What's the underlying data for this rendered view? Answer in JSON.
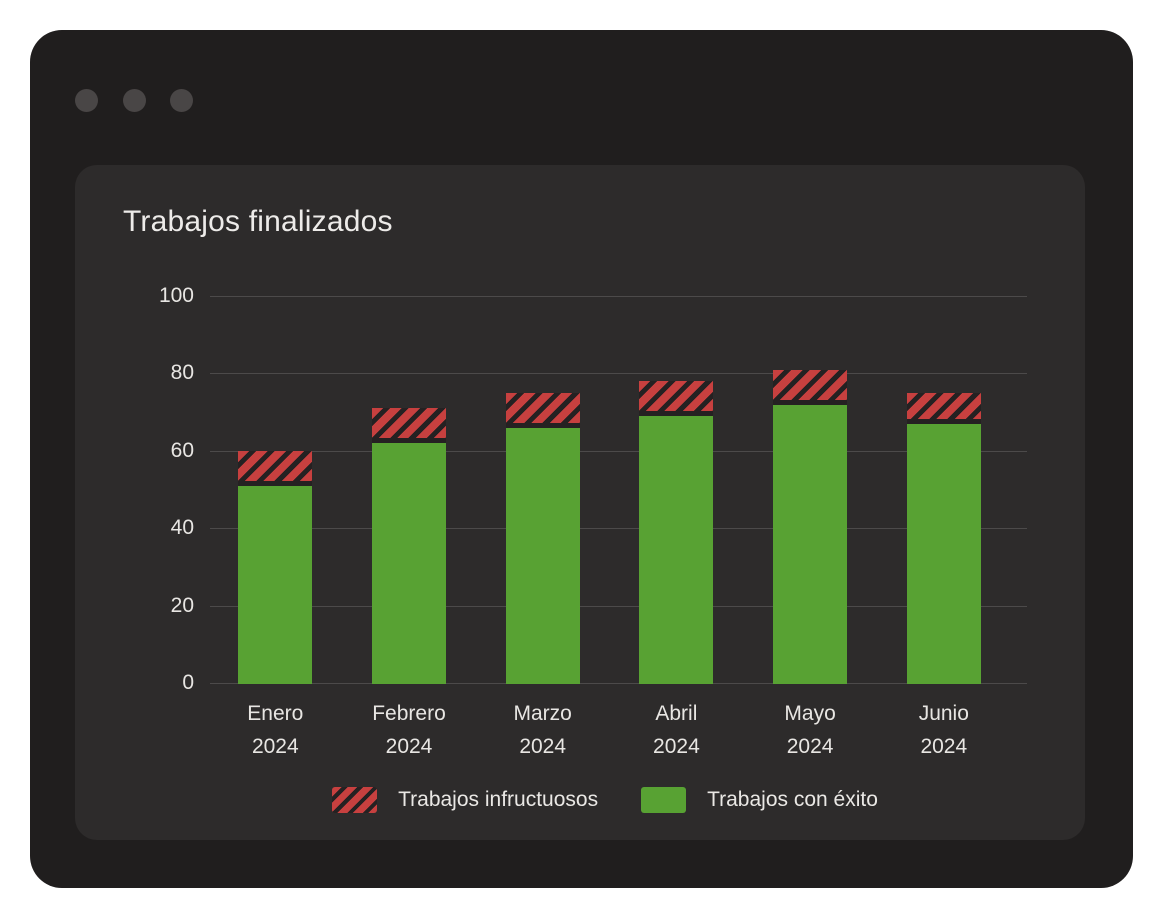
{
  "window": {
    "controls": [
      "dot",
      "dot",
      "dot"
    ]
  },
  "chart_data": {
    "type": "bar",
    "stacked": true,
    "title": "Trabajos finalizados",
    "categories": [
      {
        "month": "Enero",
        "year": "2024"
      },
      {
        "month": "Febrero",
        "year": "2024"
      },
      {
        "month": "Marzo",
        "year": "2024"
      },
      {
        "month": "Abril",
        "year": "2024"
      },
      {
        "month": "Mayo",
        "year": "2024"
      },
      {
        "month": "Junio",
        "year": "2024"
      }
    ],
    "series": [
      {
        "name": "Trabajos con éxito",
        "color": "#58a233",
        "pattern": "solid",
        "values": [
          51,
          62,
          66,
          69,
          72,
          67
        ]
      },
      {
        "name": "Trabajos infructuosos",
        "color": "#c7403f",
        "pattern": "diagonal-hatch",
        "hatch_color": "#252122",
        "values": [
          9,
          9,
          9,
          9,
          9,
          8
        ]
      }
    ],
    "totals": [
      60,
      71,
      75,
      78,
      81,
      75
    ],
    "ylim": [
      0,
      100
    ],
    "yticks": [
      0,
      20,
      40,
      60,
      80,
      100
    ],
    "grid": true,
    "legend_position": "bottom"
  },
  "legend": {
    "items": [
      {
        "label": "Trabajos infructuosos"
      },
      {
        "label": "Trabajos con éxito"
      }
    ]
  }
}
